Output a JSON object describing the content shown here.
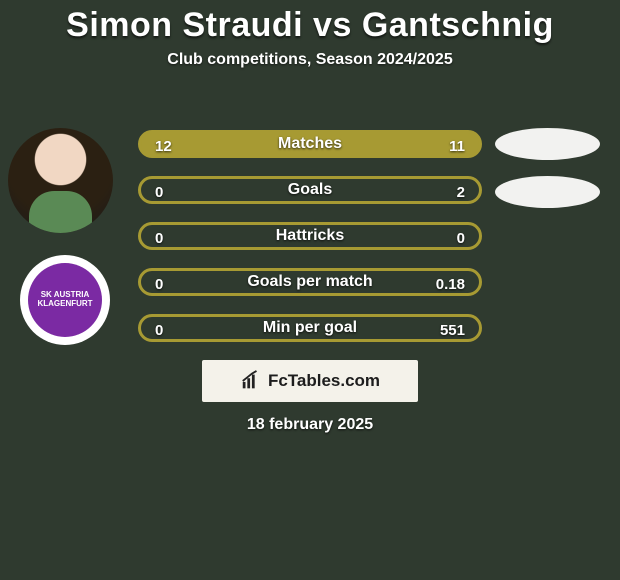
{
  "title": {
    "text": "Simon Straudi vs Gantschnig",
    "fontsize": 34,
    "color": "#ffffff"
  },
  "subtitle": {
    "text": "Club competitions, Season 2024/2025",
    "fontsize": 16,
    "color": "#ffffff"
  },
  "colors": {
    "bar_border": "#a79a33",
    "bar_fill": "#a79a33",
    "bar_fill_empty": "transparent",
    "text": "#ffffff",
    "background": "#2f3a2f",
    "oval": "#f2f2f0",
    "club_badge_bg": "#ffffff",
    "club_inner": "#7b2aa3"
  },
  "club": {
    "line1": "SK AUSTRIA",
    "line2": "KLAGENFURT"
  },
  "bars": {
    "height": 28,
    "border_radius": 16,
    "border_width": 3,
    "rows": [
      {
        "label": "Matches",
        "left": "12",
        "right": "11",
        "fill_pct": 100
      },
      {
        "label": "Goals",
        "left": "0",
        "right": "2",
        "fill_pct": 0
      },
      {
        "label": "Hattricks",
        "left": "0",
        "right": "0",
        "fill_pct": 0
      },
      {
        "label": "Goals per match",
        "left": "0",
        "right": "0.18",
        "fill_pct": 0
      },
      {
        "label": "Min per goal",
        "left": "0",
        "right": "551",
        "fill_pct": 0
      }
    ]
  },
  "brand": {
    "text": "FcTables.com"
  },
  "date": {
    "text": "18 february 2025"
  }
}
